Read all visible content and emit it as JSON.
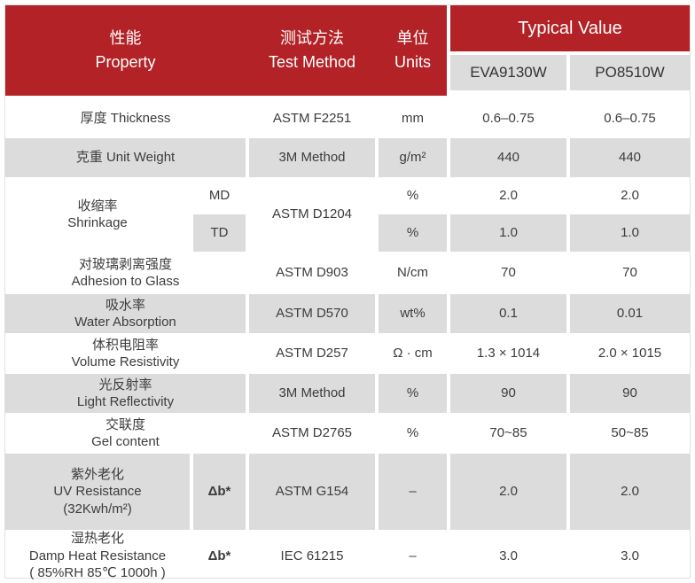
{
  "colors": {
    "header_red": "#b22226",
    "cell_gray": "#dcdcdc",
    "body_text": "#3c3c3c",
    "header_text": "#ffffff"
  },
  "header": {
    "property": "性能\nProperty",
    "test_method": "测试方法\nTest Method",
    "units": "单位\nUnits",
    "typical_value": "Typical Value",
    "column_eva": "EVA9130W",
    "column_po": "PO8510W"
  },
  "rows": {
    "thickness": {
      "property": "厚度 Thickness",
      "method": "ASTM F2251",
      "units": "mm",
      "eva": "0.6–0.75",
      "po": "0.6–0.75"
    },
    "unit_weight": {
      "property": "克重 Unit Weight",
      "method": "3M Method",
      "units": "g/m²",
      "eva": "440",
      "po": "440"
    },
    "shrinkage": {
      "property": "收缩率\nShrinkage",
      "method": "ASTM D1204",
      "md_label": "MD",
      "td_label": "TD",
      "md": {
        "units": "%",
        "eva": "2.0",
        "po": "2.0"
      },
      "td": {
        "units": "%",
        "eva": "1.0",
        "po": "1.0"
      }
    },
    "adhesion_to_glass": {
      "property": "对玻璃剥离强度\nAdhesion to Glass",
      "method": "ASTM D903",
      "units": "N/cm",
      "eva": "70",
      "po": "70"
    },
    "water_absorption": {
      "property": "吸水率\nWater Absorption",
      "method": "ASTM D570",
      "units": "wt%",
      "eva": "0.1",
      "po": "0.01"
    },
    "volume_resistivity": {
      "property": "体积电阻率\nVolume Resistivity",
      "method": "ASTM D257",
      "units": "Ω · cm",
      "eva": "1.3 × 1014",
      "po": "2.0 × 1015"
    },
    "light_reflectivity": {
      "property": "光反射率\nLight Reflectivity",
      "method": "3M Method",
      "units": "%",
      "eva": "90",
      "po": "90"
    },
    "gel_content": {
      "property": "交联度\nGel content",
      "method": "ASTM D2765",
      "units": "%",
      "eva": "70~85",
      "po": "50~85"
    },
    "uv_resistance": {
      "property": "紫外老化\nUV Resistance\n(32Kwh/m²)",
      "sub": "Δb*",
      "method": "ASTM G154",
      "units": "–",
      "eva": "2.0",
      "po": "2.0"
    },
    "damp_heat_resistance": {
      "property": "湿热老化\nDamp Heat Resistance\n( 85%RH  85℃  1000h )",
      "sub": "Δb*",
      "method": "IEC 61215",
      "units": "–",
      "eva": "3.0",
      "po": "3.0"
    }
  }
}
